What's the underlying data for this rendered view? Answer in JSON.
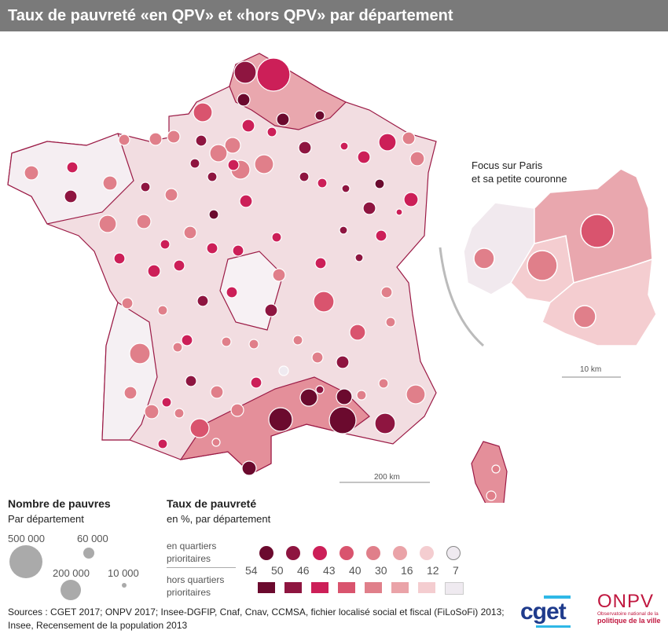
{
  "title": "Taux de pauvreté «en QPV» et «hors QPV» par département",
  "inset": {
    "title_line1": "Focus sur Paris",
    "title_line2": "et sa petite couronne",
    "scale": "10 km"
  },
  "map_scale": "200 km",
  "legend_size": {
    "title": "Nombre de pauvres",
    "subtitle": "Par département",
    "values": [
      "500 000",
      "60 000",
      "200 000",
      "10 000"
    ]
  },
  "legend_rate": {
    "title": "Taux de pauvreté",
    "subtitle": "en %, par département",
    "row1_label_line1": "en quartiers",
    "row1_label_line2": "prioritaires",
    "row2_label_line1": "hors quartiers",
    "row2_label_line2": "prioritaires",
    "breaks": [
      "54",
      "50",
      "46",
      "43",
      "40",
      "30",
      "16",
      "12",
      "7"
    ],
    "colors": [
      "#6b0a2e",
      "#8e1540",
      "#cc1f58",
      "#d9546e",
      "#e07f8a",
      "#eaa3a8",
      "#f4cdd0",
      "#efeaf0"
    ]
  },
  "sources_line1": "Sources : CGET 2017; ONPV 2017; Insee-DGFIP, Cnaf, Cnav, CCMSA, fichier localisé social et fiscal (FiLoSoFi) 2013;",
  "sources_line2": "Insee, Recensement de la population 2013",
  "logos": {
    "cget": "cget",
    "onpv": "ONPV",
    "onpv_sub1": "Observatoire national de la",
    "onpv_sub2": "politique de la ville"
  }
}
